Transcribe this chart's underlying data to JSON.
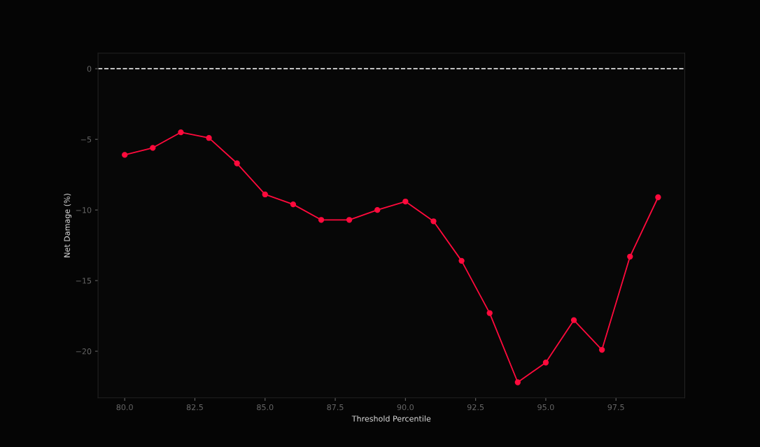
{
  "chart_data": {
    "type": "line",
    "xlabel": "Threshold Percentile",
    "ylabel": "Net Damage (%)",
    "x": [
      80,
      81,
      82,
      83,
      84,
      85,
      86,
      87,
      88,
      89,
      90,
      91,
      92,
      93,
      94,
      95,
      96,
      97,
      98,
      99
    ],
    "series": [
      {
        "color": "#ff0a3c",
        "values": [
          -6.1,
          -5.6,
          -4.5,
          -4.9,
          -6.7,
          -8.9,
          -9.6,
          -10.7,
          -10.7,
          -10.0,
          -9.4,
          -10.8,
          -13.6,
          -17.3,
          -22.2,
          -20.8,
          -17.8,
          -19.9,
          -13.3,
          -9.1
        ]
      }
    ],
    "xlim": [
      79.05,
      99.95
    ],
    "xticks": [
      {
        "value": 80,
        "label": "80.0"
      },
      {
        "value": 82.5,
        "label": "82.5"
      },
      {
        "value": 85,
        "label": "85.0"
      },
      {
        "value": 87.5,
        "label": "87.5"
      },
      {
        "value": 90,
        "label": "90.0"
      },
      {
        "value": 92.5,
        "label": "92.5"
      },
      {
        "value": 95,
        "label": "95.0"
      },
      {
        "value": 97.5,
        "label": "97.5"
      }
    ],
    "ylim": [
      -23.3,
      1.1
    ],
    "yticks": [
      0,
      {
        "value": -5,
        "label": "−5"
      },
      {
        "value": -10,
        "label": "−10"
      },
      {
        "value": -15,
        "label": "−15"
      },
      {
        "value": -20,
        "label": "−20"
      }
    ],
    "ref_lines": [
      {
        "axis": "y",
        "value": 0,
        "color": "#ffffff",
        "line_style": "dashed"
      }
    ],
    "grid": false,
    "legend": false,
    "marker": "circle",
    "line_style": "solid"
  }
}
